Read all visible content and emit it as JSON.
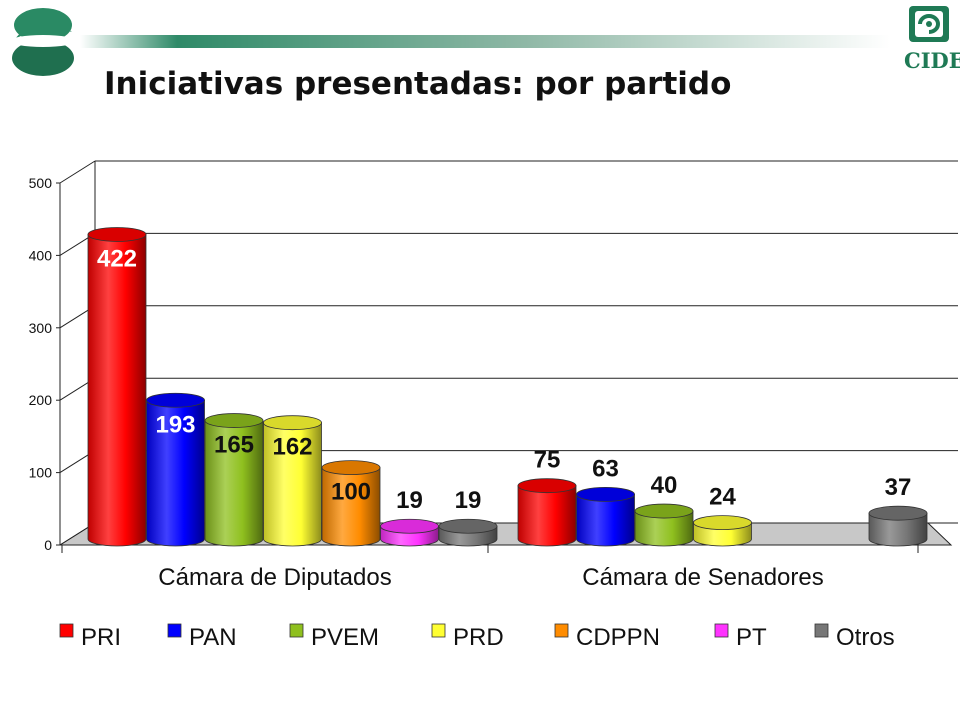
{
  "slide": {
    "title": "Iniciativas presentadas: por partido",
    "logo_text": "CIDE"
  },
  "colors": {
    "accent_green": "#1f7a55",
    "PRI": "#ff0000",
    "PAN": "#0000ff",
    "PVEM": "#8fc01e",
    "PRD": "#ffff33",
    "CDPPN": "#ff8c00",
    "PT": "#ff33ff",
    "Otros": "#777777"
  },
  "chart_data": {
    "type": "bar",
    "title": "",
    "xlabel": "",
    "ylabel": "",
    "ylim": [
      0,
      500
    ],
    "yticks": [
      "0",
      "100",
      "200",
      "300",
      "400",
      "500"
    ],
    "grid": true,
    "legend_position": "bottom",
    "categories": [
      "Cámara de Diputados",
      "Cámara de Senadores"
    ],
    "series": [
      {
        "name": "PRI",
        "values": [
          422,
          75
        ]
      },
      {
        "name": "PAN",
        "values": [
          193,
          63
        ]
      },
      {
        "name": "PVEM",
        "values": [
          165,
          40
        ]
      },
      {
        "name": "PRD",
        "values": [
          162,
          24
        ]
      },
      {
        "name": "CDPPN",
        "values": [
          100,
          null
        ]
      },
      {
        "name": "PT",
        "values": [
          19,
          null
        ]
      },
      {
        "name": "Otros",
        "values": [
          19,
          37
        ]
      }
    ]
  }
}
